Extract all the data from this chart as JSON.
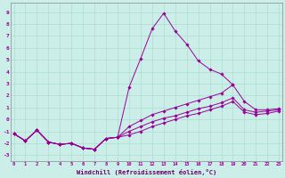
{
  "bg_color": "#cceee8",
  "line_color": "#990099",
  "grid_color": "#aaddcc",
  "xlabel": "Windchill (Refroidissement éolien,°C)",
  "xlabel_color": "#660066",
  "ylabel_ticks": [
    -3,
    -2,
    -1,
    0,
    1,
    2,
    3,
    4,
    5,
    6,
    7,
    8,
    9
  ],
  "xtick_labels": [
    "0",
    "1",
    "2",
    "3",
    "4",
    "5",
    "6",
    "7",
    "8",
    "9",
    "10",
    "11",
    "12",
    "13",
    "14",
    "15",
    "16",
    "17",
    "18",
    "19",
    "20",
    "21",
    "22",
    "23"
  ],
  "xlim": [
    -0.3,
    23.3
  ],
  "ylim": [
    -3.5,
    9.8
  ],
  "line1_x": [
    0,
    1,
    2,
    3,
    4,
    5,
    6,
    7,
    8,
    9,
    10,
    11,
    12,
    13,
    14,
    15,
    16,
    17,
    18,
    19
  ],
  "line1_y": [
    -1.2,
    -1.8,
    -0.9,
    -1.9,
    -2.1,
    -2.0,
    -2.4,
    -2.5,
    -1.6,
    -1.5,
    2.7,
    5.1,
    7.6,
    8.9,
    7.4,
    6.3,
    4.9,
    4.2,
    3.8,
    2.9
  ],
  "line2_x": [
    0,
    1,
    2,
    3,
    4,
    5,
    6,
    7,
    8,
    9,
    10,
    11,
    12,
    13,
    14,
    15,
    16,
    17,
    18,
    19,
    20,
    21,
    22,
    23
  ],
  "line2_y": [
    -1.2,
    -1.8,
    -0.9,
    -1.9,
    -2.1,
    -2.0,
    -2.4,
    -2.5,
    -1.6,
    -1.5,
    -0.6,
    -0.1,
    0.4,
    0.7,
    1.0,
    1.3,
    1.6,
    1.9,
    2.2,
    2.9,
    1.5,
    0.8,
    0.8,
    0.9
  ],
  "line3_x": [
    0,
    1,
    2,
    3,
    4,
    5,
    6,
    7,
    8,
    9,
    10,
    11,
    12,
    13,
    14,
    15,
    16,
    17,
    18,
    19,
    20,
    21,
    22,
    23
  ],
  "line3_y": [
    -1.2,
    -1.8,
    -0.9,
    -1.9,
    -2.1,
    -2.0,
    -2.4,
    -2.5,
    -1.6,
    -1.5,
    -1.0,
    -0.6,
    -0.2,
    0.1,
    0.3,
    0.6,
    0.9,
    1.1,
    1.4,
    1.8,
    0.8,
    0.6,
    0.7,
    0.8
  ],
  "line4_x": [
    0,
    1,
    2,
    3,
    4,
    5,
    6,
    7,
    8,
    9,
    10,
    11,
    12,
    13,
    14,
    15,
    16,
    17,
    18,
    19,
    20,
    21,
    22,
    23
  ],
  "line4_y": [
    -1.2,
    -1.8,
    -0.9,
    -1.9,
    -2.1,
    -2.0,
    -2.4,
    -2.5,
    -1.6,
    -1.5,
    -1.3,
    -1.0,
    -0.6,
    -0.3,
    0.0,
    0.3,
    0.5,
    0.8,
    1.1,
    1.5,
    0.6,
    0.4,
    0.5,
    0.7
  ]
}
